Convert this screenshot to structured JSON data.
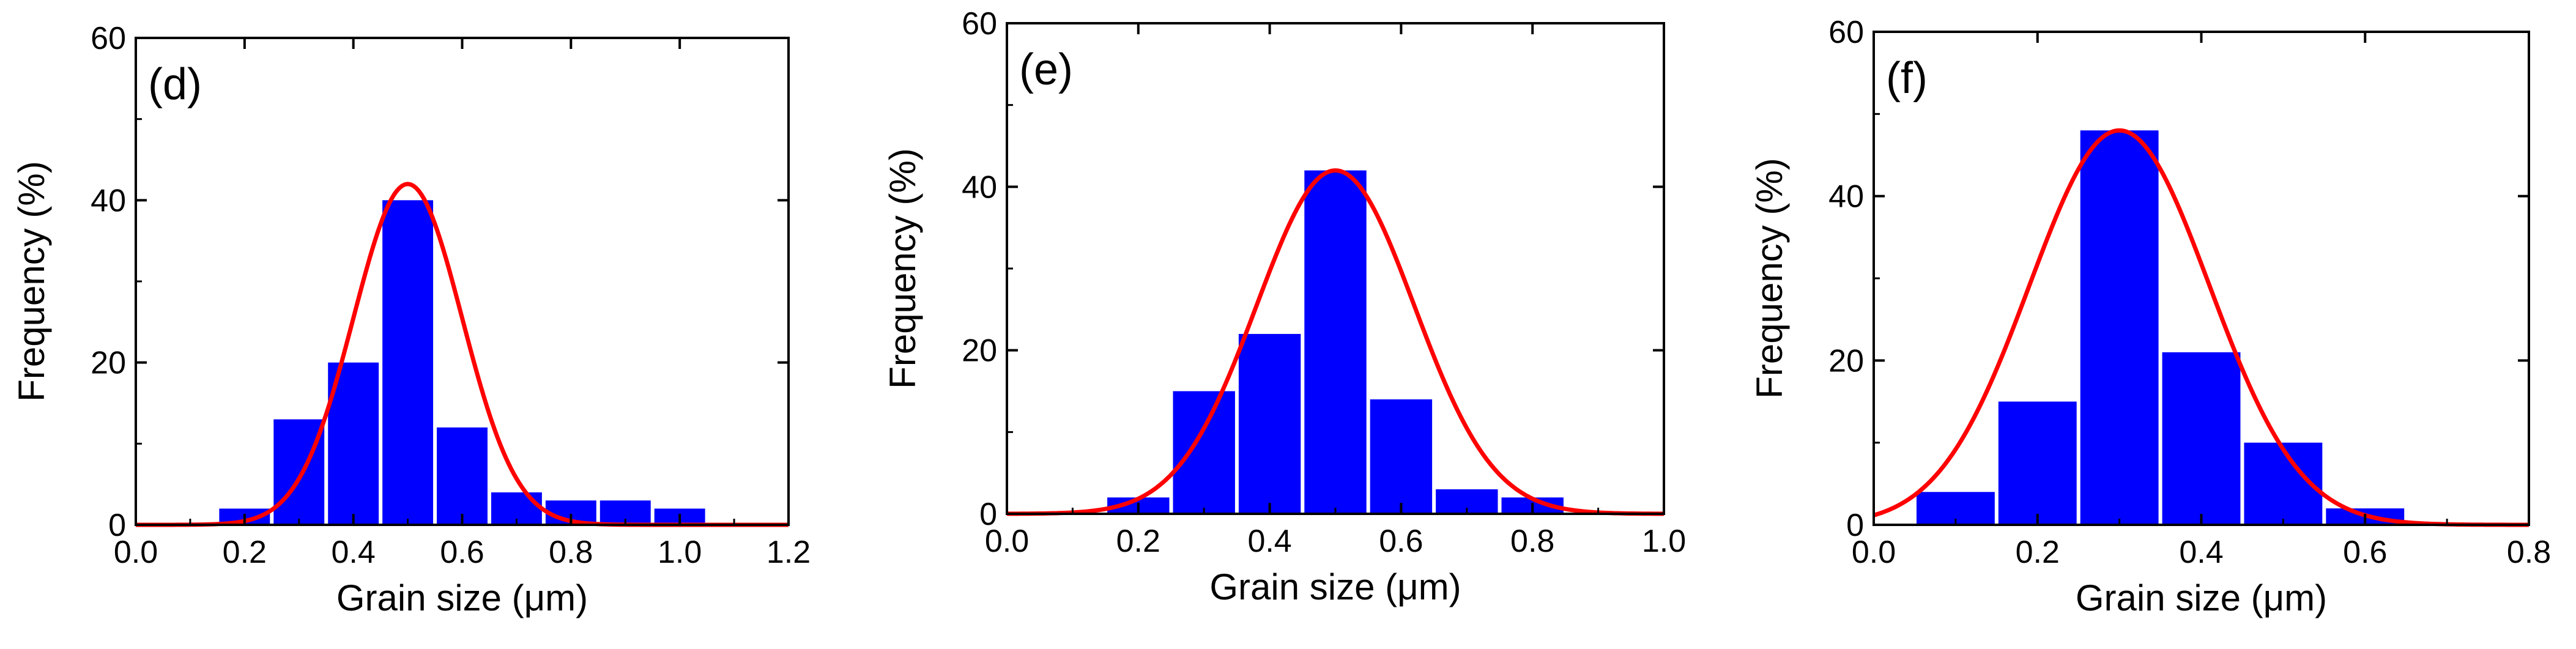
{
  "chart_data": [
    {
      "type": "bar",
      "panel_label": "(d)",
      "xlabel": "Grain size (μm)",
      "ylabel": "Frequency (%)",
      "xlim": [
        0.0,
        1.2
      ],
      "ylim": [
        0,
        60
      ],
      "xticks": [
        "0.0",
        "0.2",
        "0.4",
        "0.6",
        "0.8",
        "1.0",
        "1.2"
      ],
      "yticks": [
        "0",
        "20",
        "40",
        "60"
      ],
      "bin_width": 0.1,
      "bins": [
        0.2,
        0.3,
        0.4,
        0.5,
        0.6,
        0.7,
        0.8,
        0.9,
        1.0
      ],
      "values": [
        2,
        13,
        20,
        40,
        12,
        4,
        3,
        3,
        2
      ],
      "fit": {
        "type": "gaussian",
        "mean": 0.5,
        "sigma": 0.1,
        "peak": 42
      },
      "bar_color": "#0000ff",
      "fit_color": "#ff0000"
    },
    {
      "type": "bar",
      "panel_label": "(e)",
      "xlabel": "Grain size (μm)",
      "ylabel": "Frequency (%)",
      "xlim": [
        0.0,
        1.0
      ],
      "ylim": [
        0,
        60
      ],
      "xticks": [
        "0.0",
        "0.2",
        "0.4",
        "0.6",
        "0.8",
        "1.0"
      ],
      "yticks": [
        "0",
        "20",
        "40",
        "60"
      ],
      "bin_width": 0.1,
      "bins": [
        0.2,
        0.3,
        0.4,
        0.5,
        0.6,
        0.7,
        0.8
      ],
      "values": [
        2,
        15,
        22,
        42,
        14,
        3,
        2
      ],
      "fit": {
        "type": "gaussian",
        "mean": 0.5,
        "sigma": 0.12,
        "peak": 42
      },
      "bar_color": "#0000ff",
      "fit_color": "#ff0000"
    },
    {
      "type": "bar",
      "panel_label": "(f)",
      "xlabel": "Grain size (μm)",
      "ylabel": "Frequency (%)",
      "xlim": [
        0.0,
        0.8
      ],
      "ylim": [
        0,
        60
      ],
      "xticks": [
        "0.0",
        "0.2",
        "0.4",
        "0.6",
        "0.8"
      ],
      "yticks": [
        "0",
        "20",
        "40",
        "60"
      ],
      "bin_width": 0.1,
      "bins": [
        0.1,
        0.2,
        0.3,
        0.4,
        0.5,
        0.6
      ],
      "values": [
        4,
        15,
        48,
        21,
        10,
        2
      ],
      "fit": {
        "type": "gaussian",
        "mean": 0.3,
        "sigma": 0.11,
        "peak": 48
      },
      "bar_color": "#0000ff",
      "fit_color": "#ff0000"
    }
  ]
}
